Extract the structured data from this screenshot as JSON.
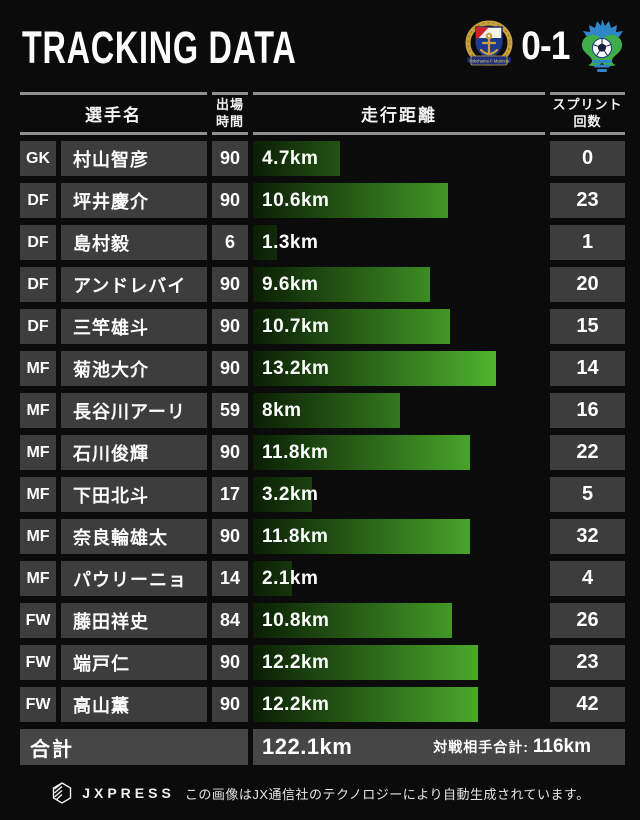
{
  "header": {
    "title": "TRACKING DATA",
    "score": "0-1",
    "home_team": "Yokohama F-Marinos",
    "away_team": "Shonan Bellmare"
  },
  "table": {
    "columns": {
      "player": "選手名",
      "time_line1": "出場",
      "time_line2": "時間",
      "distance": "走行距離",
      "sprint_line1": "スプリント",
      "sprint_line2": "回数"
    },
    "max_distance_km": 13.2,
    "rows": [
      {
        "position": "GK",
        "name": "村山智彦",
        "minutes": "90",
        "distance_label": "4.7km",
        "distance_km": 4.7,
        "sprints": "0"
      },
      {
        "position": "DF",
        "name": "坪井慶介",
        "minutes": "90",
        "distance_label": "10.6km",
        "distance_km": 10.6,
        "sprints": "23"
      },
      {
        "position": "DF",
        "name": "島村毅",
        "minutes": "6",
        "distance_label": "1.3km",
        "distance_km": 1.3,
        "sprints": "1"
      },
      {
        "position": "DF",
        "name": "アンドレバイ",
        "minutes": "90",
        "distance_label": "9.6km",
        "distance_km": 9.6,
        "sprints": "20"
      },
      {
        "position": "DF",
        "name": "三竿雄斗",
        "minutes": "90",
        "distance_label": "10.7km",
        "distance_km": 10.7,
        "sprints": "15"
      },
      {
        "position": "MF",
        "name": "菊池大介",
        "minutes": "90",
        "distance_label": "13.2km",
        "distance_km": 13.2,
        "sprints": "14"
      },
      {
        "position": "MF",
        "name": "長谷川アーリ",
        "minutes": "59",
        "distance_label": "8km",
        "distance_km": 8.0,
        "sprints": "16"
      },
      {
        "position": "MF",
        "name": "石川俊輝",
        "minutes": "90",
        "distance_label": "11.8km",
        "distance_km": 11.8,
        "sprints": "22"
      },
      {
        "position": "MF",
        "name": "下田北斗",
        "minutes": "17",
        "distance_label": "3.2km",
        "distance_km": 3.2,
        "sprints": "5"
      },
      {
        "position": "MF",
        "name": "奈良輪雄太",
        "minutes": "90",
        "distance_label": "11.8km",
        "distance_km": 11.8,
        "sprints": "32"
      },
      {
        "position": "MF",
        "name": "パウリーニョ",
        "minutes": "14",
        "distance_label": "2.1km",
        "distance_km": 2.1,
        "sprints": "4"
      },
      {
        "position": "FW",
        "name": "藤田祥史",
        "minutes": "84",
        "distance_label": "10.8km",
        "distance_km": 10.8,
        "sprints": "26"
      },
      {
        "position": "FW",
        "name": "端戸仁",
        "minutes": "90",
        "distance_label": "12.2km",
        "distance_km": 12.2,
        "sprints": "23"
      },
      {
        "position": "FW",
        "name": "高山薫",
        "minutes": "90",
        "distance_label": "12.2km",
        "distance_km": 12.2,
        "sprints": "42"
      }
    ],
    "total": {
      "label": "合計",
      "distance": "122.1km",
      "opponent_label": "対戦相手合計:",
      "opponent_value": "116km"
    }
  },
  "footer": {
    "brand": "JXPRESS",
    "note": "この画像はJX通信社のテクノロジーにより自動生成されています。"
  },
  "colors": {
    "background": "#0b0b0b",
    "cell": "#3d3d3d",
    "total_cell": "#464646",
    "rule": "#909090",
    "bar_dark": "#0b1e05",
    "bar_bright": "#4eb42e"
  },
  "chart_data": {
    "type": "bar",
    "title": "TRACKING DATA",
    "subtitle": "Yokohama F-Marinos 0-1 Shonan Bellmare",
    "orientation": "horizontal",
    "categories": [
      "村山智彦",
      "坪井慶介",
      "島村毅",
      "アンドレバイ",
      "三竿雄斗",
      "菊池大介",
      "長谷川アーリ",
      "石川俊輝",
      "下田北斗",
      "奈良輪雄太",
      "パウリーニョ",
      "藤田祥史",
      "端戸仁",
      "高山薫"
    ],
    "category_positions": [
      "GK",
      "DF",
      "DF",
      "DF",
      "DF",
      "MF",
      "MF",
      "MF",
      "MF",
      "MF",
      "MF",
      "FW",
      "FW",
      "FW"
    ],
    "series": [
      {
        "name": "出場時間",
        "values": [
          90,
          90,
          6,
          90,
          90,
          90,
          59,
          90,
          17,
          90,
          14,
          84,
          90,
          90
        ]
      },
      {
        "name": "走行距離(km)",
        "values": [
          4.7,
          10.6,
          1.3,
          9.6,
          10.7,
          13.2,
          8,
          11.8,
          3.2,
          11.8,
          2.1,
          10.8,
          12.2,
          12.2
        ]
      },
      {
        "name": "スプリント回数",
        "values": [
          0,
          23,
          1,
          20,
          15,
          14,
          16,
          22,
          5,
          32,
          4,
          26,
          23,
          42
        ]
      }
    ],
    "bar_series": "走行距離(km)",
    "xlabel": "走行距離",
    "ylabel": "選手名",
    "xlim": [
      0,
      13.2
    ],
    "grid": false,
    "legend": false,
    "totals": {
      "team_total_km": 122.1,
      "opponent_total_km": 116
    }
  }
}
